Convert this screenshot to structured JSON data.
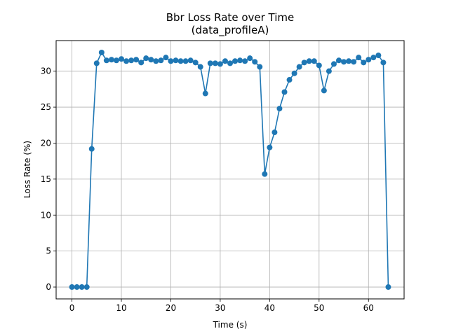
{
  "chart_data": {
    "type": "line",
    "title": "Bbr Loss Rate over Time",
    "subtitle": "(data_profileA)",
    "xlabel": "Time (s)",
    "ylabel": "Loss Rate (%)",
    "xlim": [
      -3.2,
      67.2
    ],
    "ylim": [
      -1.65,
      34.25
    ],
    "xticks": [
      0,
      10,
      20,
      30,
      40,
      50,
      60
    ],
    "yticks": [
      0,
      5,
      10,
      15,
      20,
      25,
      30
    ],
    "grid": true,
    "series_color": "#1f77b4",
    "x": [
      0,
      1,
      2,
      3,
      4,
      5,
      6,
      7,
      8,
      9,
      10,
      11,
      12,
      13,
      14,
      15,
      16,
      17,
      18,
      19,
      20,
      21,
      22,
      23,
      24,
      25,
      26,
      27,
      28,
      29,
      30,
      31,
      32,
      33,
      34,
      35,
      36,
      37,
      38,
      39,
      40,
      41,
      42,
      43,
      44,
      45,
      46,
      47,
      48,
      49,
      50,
      51,
      52,
      53,
      54,
      55,
      56,
      57,
      58,
      59,
      60,
      61,
      62,
      63,
      64
    ],
    "y": [
      0,
      0,
      0,
      0,
      19.2,
      31.1,
      32.6,
      31.5,
      31.6,
      31.5,
      31.7,
      31.4,
      31.5,
      31.6,
      31.2,
      31.8,
      31.6,
      31.4,
      31.5,
      31.9,
      31.4,
      31.5,
      31.4,
      31.4,
      31.5,
      31.2,
      30.6,
      26.9,
      31.1,
      31.1,
      31.0,
      31.4,
      31.1,
      31.4,
      31.5,
      31.4,
      31.8,
      31.3,
      30.6,
      15.7,
      19.4,
      21.5,
      24.8,
      27.1,
      28.8,
      29.7,
      30.6,
      31.2,
      31.4,
      31.4,
      30.8,
      27.3,
      30.0,
      31.0,
      31.5,
      31.3,
      31.4,
      31.3,
      31.9,
      31.2,
      31.6,
      31.9,
      32.2,
      31.2,
      0
    ]
  }
}
